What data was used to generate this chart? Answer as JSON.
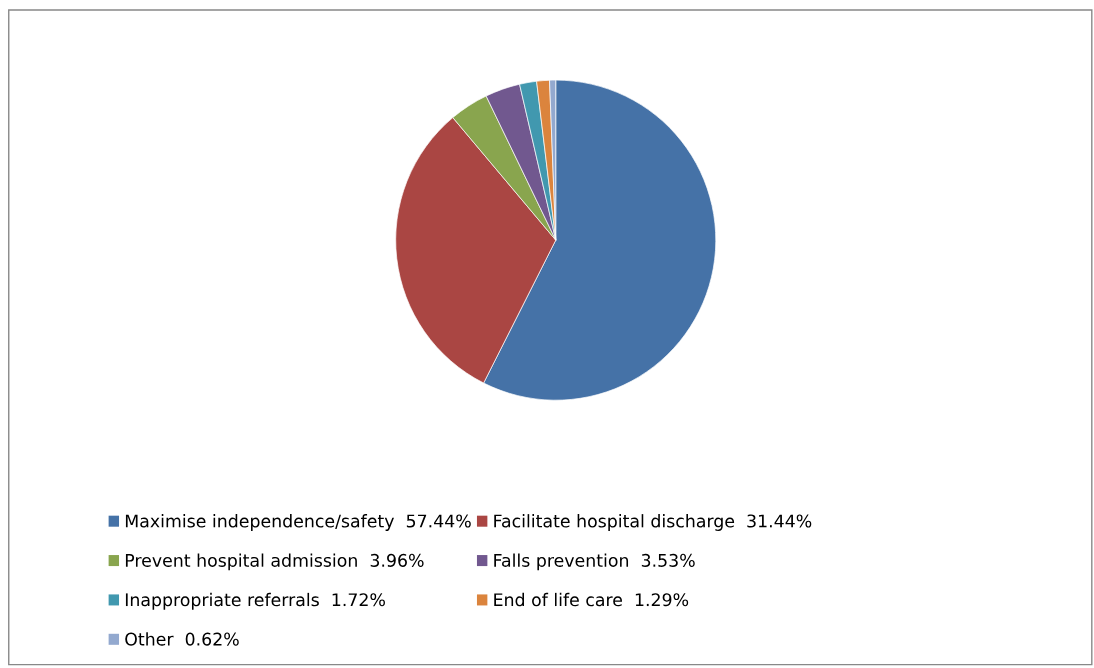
{
  "chart_data": {
    "type": "pie",
    "categories": [
      "Maximise independence/safety  57.44%",
      "Facilitate hospital discharge  31.44%",
      "Prevent hospital admission  3.96%",
      "Falls prevention  3.53%",
      "Inappropriate referrals  1.72%",
      "End of life care  1.29%",
      "Other  0.62%"
    ],
    "values": [
      57.44,
      31.44,
      3.96,
      3.53,
      1.72,
      1.29,
      0.62
    ],
    "colors": [
      "#4572a7",
      "#aa4643",
      "#89a54e",
      "#71588f",
      "#4198af",
      "#db843d",
      "#93a9cf"
    ],
    "legend": "bottom"
  }
}
